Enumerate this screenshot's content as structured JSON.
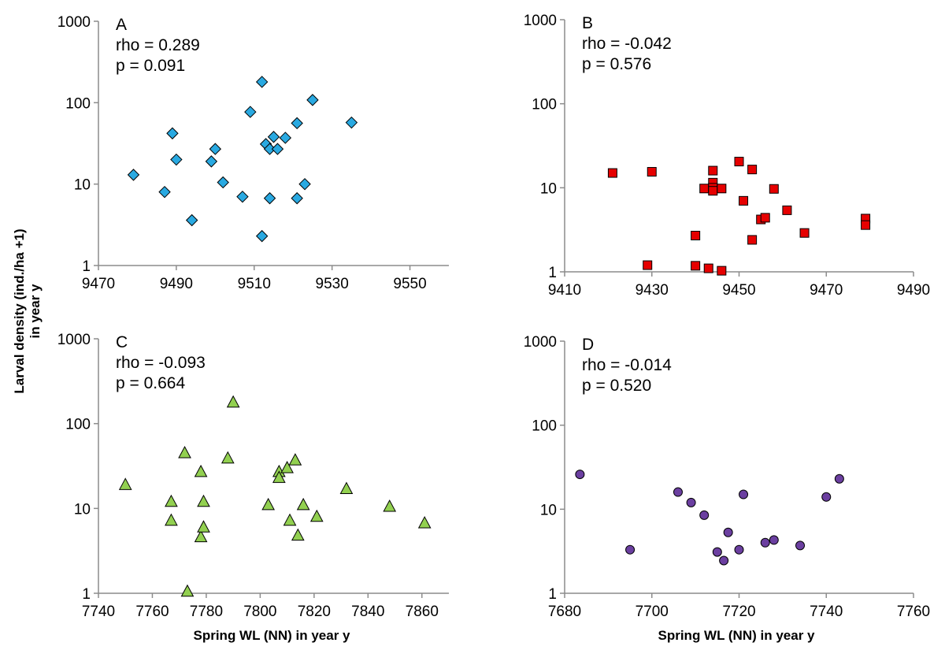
{
  "figure": {
    "ylabel_line1": "Larval density  (ind./ha +1)",
    "ylabel_line2": "in year y",
    "xlabel_left": "Spring WL (NN) in year y",
    "xlabel_right": "Spring WL (NN) in year y"
  },
  "chart_data": [
    {
      "panel": "A",
      "type": "scatter",
      "marker": "diamond",
      "color": "#29a9e1",
      "label": "A",
      "rho": "rho = 0.289",
      "p": "p = 0.091",
      "xlim": [
        9470,
        9560
      ],
      "xticks": [
        "9470",
        "9490",
        "9510",
        "9530",
        "9550"
      ],
      "xtick_values": [
        9470,
        9490,
        9510,
        9530,
        9550
      ],
      "yscale": "log",
      "ylim": [
        1,
        1000
      ],
      "yticks": [
        "1",
        "10",
        "100",
        "1000"
      ],
      "ytick_values": [
        1,
        10,
        100,
        1000
      ],
      "points": [
        {
          "x": 9479,
          "y": 13
        },
        {
          "x": 9487,
          "y": 8
        },
        {
          "x": 9489,
          "y": 42
        },
        {
          "x": 9490,
          "y": 20
        },
        {
          "x": 9494,
          "y": 3.6
        },
        {
          "x": 9499,
          "y": 19
        },
        {
          "x": 9500,
          "y": 27
        },
        {
          "x": 9502,
          "y": 10.5
        },
        {
          "x": 9507,
          "y": 7
        },
        {
          "x": 9509,
          "y": 77
        },
        {
          "x": 9512,
          "y": 180
        },
        {
          "x": 9512,
          "y": 2.3
        },
        {
          "x": 9513,
          "y": 31
        },
        {
          "x": 9514,
          "y": 27
        },
        {
          "x": 9514,
          "y": 6.7
        },
        {
          "x": 9515,
          "y": 38
        },
        {
          "x": 9516,
          "y": 27
        },
        {
          "x": 9518,
          "y": 37
        },
        {
          "x": 9521,
          "y": 56
        },
        {
          "x": 9521,
          "y": 6.7
        },
        {
          "x": 9523,
          "y": 10
        },
        {
          "x": 9525,
          "y": 108
        },
        {
          "x": 9535,
          "y": 57
        }
      ]
    },
    {
      "panel": "B",
      "type": "scatter",
      "marker": "square",
      "color": "#e60000",
      "label": "B",
      "rho": "rho = -0.042",
      "p": "p = 0.576",
      "xlim": [
        9410,
        9490
      ],
      "xticks": [
        "9410",
        "9430",
        "9450",
        "9470",
        "9490"
      ],
      "xtick_values": [
        9410,
        9430,
        9450,
        9470,
        9490
      ],
      "yscale": "log",
      "ylim": [
        1,
        1000
      ],
      "yticks": [
        "1",
        "10",
        "100",
        "1000"
      ],
      "ytick_values": [
        1,
        10,
        100,
        1000
      ],
      "points": [
        {
          "x": 9421,
          "y": 15
        },
        {
          "x": 9429,
          "y": 1.2
        },
        {
          "x": 9430,
          "y": 15.5
        },
        {
          "x": 9440,
          "y": 2.7
        },
        {
          "x": 9440,
          "y": 1.18
        },
        {
          "x": 9442,
          "y": 9.8
        },
        {
          "x": 9443,
          "y": 1.1
        },
        {
          "x": 9444,
          "y": 16
        },
        {
          "x": 9444,
          "y": 11.5
        },
        {
          "x": 9444,
          "y": 10
        },
        {
          "x": 9444,
          "y": 9.2
        },
        {
          "x": 9446,
          "y": 9.8
        },
        {
          "x": 9446,
          "y": 1.03
        },
        {
          "x": 9450,
          "y": 20.5
        },
        {
          "x": 9451,
          "y": 7
        },
        {
          "x": 9453,
          "y": 16.5
        },
        {
          "x": 9453,
          "y": 2.4
        },
        {
          "x": 9455,
          "y": 4.2
        },
        {
          "x": 9456,
          "y": 4.4
        },
        {
          "x": 9458,
          "y": 9.7
        },
        {
          "x": 9461,
          "y": 5.4
        },
        {
          "x": 9465,
          "y": 2.9
        },
        {
          "x": 9479,
          "y": 4.3
        },
        {
          "x": 9479,
          "y": 3.6
        }
      ]
    },
    {
      "panel": "C",
      "type": "scatter",
      "marker": "triangle",
      "color": "#92d050",
      "label": "C",
      "rho": "rho = -0.093",
      "p": "p = 0.664",
      "xlim": [
        7740,
        7870
      ],
      "xticks": [
        "7740",
        "7760",
        "7780",
        "7800",
        "7820",
        "7840",
        "7860"
      ],
      "xtick_values": [
        7740,
        7760,
        7780,
        7800,
        7820,
        7840,
        7860
      ],
      "yscale": "log",
      "ylim": [
        1,
        1000
      ],
      "yticks": [
        "1",
        "10",
        "100",
        "1000"
      ],
      "ytick_values": [
        1,
        10,
        100,
        1000
      ],
      "points": [
        {
          "x": 7750,
          "y": 19
        },
        {
          "x": 7767,
          "y": 12
        },
        {
          "x": 7767,
          "y": 7.2
        },
        {
          "x": 7772,
          "y": 45
        },
        {
          "x": 7773,
          "y": 1.05
        },
        {
          "x": 7778,
          "y": 27
        },
        {
          "x": 7778,
          "y": 4.6
        },
        {
          "x": 7779,
          "y": 12
        },
        {
          "x": 7779,
          "y": 6
        },
        {
          "x": 7788,
          "y": 39
        },
        {
          "x": 7790,
          "y": 178
        },
        {
          "x": 7803,
          "y": 11
        },
        {
          "x": 7807,
          "y": 27
        },
        {
          "x": 7807,
          "y": 23
        },
        {
          "x": 7810,
          "y": 30
        },
        {
          "x": 7811,
          "y": 7.2
        },
        {
          "x": 7813,
          "y": 37
        },
        {
          "x": 7814,
          "y": 4.8
        },
        {
          "x": 7816,
          "y": 11
        },
        {
          "x": 7821,
          "y": 8
        },
        {
          "x": 7832,
          "y": 17
        },
        {
          "x": 7848,
          "y": 10.5
        },
        {
          "x": 7861,
          "y": 6.7
        }
      ]
    },
    {
      "panel": "D",
      "type": "scatter",
      "marker": "circle",
      "color": "#6b3fa0",
      "label": "D",
      "rho": "rho = -0.014",
      "p": "p = 0.520",
      "xlim": [
        7680,
        7760
      ],
      "xticks": [
        "7680",
        "7700",
        "7720",
        "7740",
        "7760"
      ],
      "xtick_values": [
        7680,
        7700,
        7720,
        7740,
        7760
      ],
      "yscale": "log",
      "ylim": [
        1,
        1000
      ],
      "yticks": [
        "1",
        "10",
        "100",
        "1000"
      ],
      "ytick_values": [
        1,
        10,
        100,
        1000
      ],
      "points": [
        {
          "x": 7683.5,
          "y": 26
        },
        {
          "x": 7695,
          "y": 3.3
        },
        {
          "x": 7706,
          "y": 16
        },
        {
          "x": 7709,
          "y": 12
        },
        {
          "x": 7712,
          "y": 8.5
        },
        {
          "x": 7715,
          "y": 3.1
        },
        {
          "x": 7716.5,
          "y": 2.45
        },
        {
          "x": 7717.5,
          "y": 5.3
        },
        {
          "x": 7720,
          "y": 3.3
        },
        {
          "x": 7721,
          "y": 15
        },
        {
          "x": 7726,
          "y": 4
        },
        {
          "x": 7728,
          "y": 4.3
        },
        {
          "x": 7734,
          "y": 3.7
        },
        {
          "x": 7740,
          "y": 14
        },
        {
          "x": 7743,
          "y": 23
        }
      ]
    }
  ]
}
